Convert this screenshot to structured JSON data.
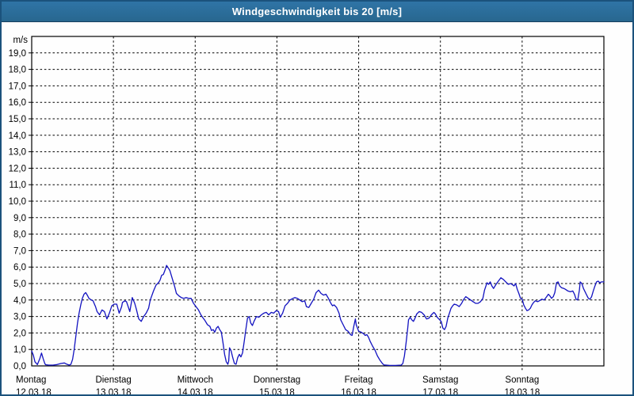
{
  "window": {
    "title": "Windgeschwindigkeit bis 20 [m/s]"
  },
  "colors": {
    "titlebar_bg": "#2a6d9e",
    "window_border": "#1b527c",
    "plot_frame": "#000000",
    "grid": "#000000",
    "line": "#1212c0",
    "background": "#fefefe",
    "title_text": "#ffffff"
  },
  "chart_data": {
    "type": "line",
    "title": "Windgeschwindigkeit bis 20 [m/s]",
    "y_unit": "m/s",
    "ylim": [
      0,
      20
    ],
    "y_tick_step": 1.0,
    "y_tick_labels": [
      "0,0",
      "1,0",
      "2,0",
      "3,0",
      "4,0",
      "5,0",
      "6,0",
      "7,0",
      "8,0",
      "9,0",
      "10,0",
      "11,0",
      "12,0",
      "13,0",
      "14,0",
      "15,0",
      "16,0",
      "17,0",
      "18,0",
      "19,0"
    ],
    "xlim_days": [
      0,
      7
    ],
    "grid": "dashed, horizontal every 1 m/s, vertical at day boundaries",
    "legend": "none",
    "x_days": [
      {
        "weekday": "Montag",
        "date": "12.03.18"
      },
      {
        "weekday": "Dienstag",
        "date": "13.03.18"
      },
      {
        "weekday": "Mittwoch",
        "date": "14.03.18"
      },
      {
        "weekday": "Donnerstag",
        "date": "15.03.18"
      },
      {
        "weekday": "Freitag",
        "date": "16.03.18"
      },
      {
        "weekday": "Samstag",
        "date": "17.03.18"
      },
      {
        "weekday": "Sonntag",
        "date": "18.03.18"
      }
    ],
    "series": [
      {
        "name": "Windgeschwindigkeit",
        "unit": "m/s",
        "points": [
          [
            0.0,
            0.9
          ],
          [
            0.02,
            0.65
          ],
          [
            0.04,
            0.25
          ],
          [
            0.07,
            0.08
          ],
          [
            0.1,
            0.45
          ],
          [
            0.12,
            0.78
          ],
          [
            0.14,
            0.45
          ],
          [
            0.16,
            0.15
          ],
          [
            0.17,
            0.07
          ],
          [
            0.21,
            0.05
          ],
          [
            0.26,
            0.05
          ],
          [
            0.31,
            0.08
          ],
          [
            0.36,
            0.15
          ],
          [
            0.4,
            0.18
          ],
          [
            0.43,
            0.1
          ],
          [
            0.46,
            0.05
          ],
          [
            0.48,
            0.1
          ],
          [
            0.5,
            0.4
          ],
          [
            0.52,
            1.0
          ],
          [
            0.54,
            1.8
          ],
          [
            0.56,
            2.6
          ],
          [
            0.58,
            3.2
          ],
          [
            0.6,
            3.7
          ],
          [
            0.62,
            4.1
          ],
          [
            0.64,
            4.35
          ],
          [
            0.66,
            4.45
          ],
          [
            0.68,
            4.3
          ],
          [
            0.7,
            4.1
          ],
          [
            0.73,
            4.0
          ],
          [
            0.75,
            3.95
          ],
          [
            0.78,
            3.6
          ],
          [
            0.8,
            3.3
          ],
          [
            0.83,
            3.1
          ],
          [
            0.86,
            3.4
          ],
          [
            0.89,
            3.3
          ],
          [
            0.92,
            2.85
          ],
          [
            0.95,
            3.2
          ],
          [
            0.98,
            3.65
          ],
          [
            1.01,
            3.75
          ],
          [
            1.04,
            3.75
          ],
          [
            1.07,
            3.2
          ],
          [
            1.1,
            3.6
          ],
          [
            1.11,
            3.85
          ],
          [
            1.14,
            3.95
          ],
          [
            1.16,
            3.9
          ],
          [
            1.18,
            3.6
          ],
          [
            1.2,
            3.3
          ],
          [
            1.23,
            4.15
          ],
          [
            1.26,
            3.8
          ],
          [
            1.28,
            3.45
          ],
          [
            1.31,
            2.85
          ],
          [
            1.34,
            2.7
          ],
          [
            1.37,
            3.0
          ],
          [
            1.4,
            3.2
          ],
          [
            1.43,
            3.5
          ],
          [
            1.45,
            4.0
          ],
          [
            1.49,
            4.55
          ],
          [
            1.52,
            4.9
          ],
          [
            1.55,
            5.05
          ],
          [
            1.57,
            5.2
          ],
          [
            1.59,
            5.5
          ],
          [
            1.61,
            5.55
          ],
          [
            1.63,
            5.8
          ],
          [
            1.65,
            6.1
          ],
          [
            1.67,
            5.95
          ],
          [
            1.69,
            5.8
          ],
          [
            1.72,
            5.3
          ],
          [
            1.75,
            4.8
          ],
          [
            1.77,
            4.4
          ],
          [
            1.8,
            4.25
          ],
          [
            1.83,
            4.15
          ],
          [
            1.86,
            4.1
          ],
          [
            1.89,
            4.15
          ],
          [
            1.92,
            4.1
          ],
          [
            1.95,
            4.1
          ],
          [
            1.98,
            3.8
          ],
          [
            2.01,
            3.6
          ],
          [
            2.04,
            3.4
          ],
          [
            2.07,
            3.1
          ],
          [
            2.09,
            2.95
          ],
          [
            2.12,
            2.75
          ],
          [
            2.15,
            2.5
          ],
          [
            2.18,
            2.4
          ],
          [
            2.2,
            2.15
          ],
          [
            2.22,
            2.2
          ],
          [
            2.24,
            2.05
          ],
          [
            2.26,
            2.3
          ],
          [
            2.28,
            2.4
          ],
          [
            2.3,
            2.2
          ],
          [
            2.32,
            2.05
          ],
          [
            2.34,
            1.4
          ],
          [
            2.36,
            0.7
          ],
          [
            2.38,
            0.25
          ],
          [
            2.4,
            0.1
          ],
          [
            2.41,
            0.3
          ],
          [
            2.42,
            1.1
          ],
          [
            2.44,
            0.9
          ],
          [
            2.46,
            0.5
          ],
          [
            2.48,
            0.15
          ],
          [
            2.5,
            0.1
          ],
          [
            2.52,
            0.5
          ],
          [
            2.54,
            0.7
          ],
          [
            2.56,
            0.55
          ],
          [
            2.58,
            0.8
          ],
          [
            2.6,
            1.5
          ],
          [
            2.62,
            2.2
          ],
          [
            2.64,
            2.9
          ],
          [
            2.66,
            3.0
          ],
          [
            2.68,
            2.6
          ],
          [
            2.7,
            2.45
          ],
          [
            2.72,
            2.7
          ],
          [
            2.75,
            3.0
          ],
          [
            2.78,
            2.95
          ],
          [
            2.81,
            3.1
          ],
          [
            2.84,
            3.2
          ],
          [
            2.87,
            3.25
          ],
          [
            2.9,
            3.1
          ],
          [
            2.93,
            3.25
          ],
          [
            2.96,
            3.2
          ],
          [
            2.99,
            3.35
          ],
          [
            3.02,
            3.3
          ],
          [
            3.04,
            2.95
          ],
          [
            3.07,
            3.2
          ],
          [
            3.1,
            3.65
          ],
          [
            3.13,
            3.8
          ],
          [
            3.16,
            4.0
          ],
          [
            3.19,
            4.08
          ],
          [
            3.22,
            4.15
          ],
          [
            3.25,
            4.1
          ],
          [
            3.28,
            4.0
          ],
          [
            3.31,
            3.9
          ],
          [
            3.34,
            3.95
          ],
          [
            3.36,
            3.6
          ],
          [
            3.39,
            3.55
          ],
          [
            3.42,
            3.8
          ],
          [
            3.45,
            4.05
          ],
          [
            3.48,
            4.45
          ],
          [
            3.51,
            4.6
          ],
          [
            3.54,
            4.4
          ],
          [
            3.57,
            4.3
          ],
          [
            3.6,
            4.35
          ],
          [
            3.63,
            4.1
          ],
          [
            3.66,
            3.8
          ],
          [
            3.68,
            3.65
          ],
          [
            3.7,
            3.7
          ],
          [
            3.73,
            3.55
          ],
          [
            3.76,
            3.2
          ],
          [
            3.78,
            2.8
          ],
          [
            3.81,
            2.5
          ],
          [
            3.84,
            2.2
          ],
          [
            3.87,
            2.1
          ],
          [
            3.9,
            1.9
          ],
          [
            3.92,
            1.85
          ],
          [
            3.94,
            2.4
          ],
          [
            3.96,
            2.85
          ],
          [
            3.97,
            2.5
          ],
          [
            4.0,
            2.1
          ],
          [
            4.03,
            2.05
          ],
          [
            4.06,
            1.95
          ],
          [
            4.08,
            1.85
          ],
          [
            4.1,
            1.9
          ],
          [
            4.12,
            1.75
          ],
          [
            4.14,
            1.5
          ],
          [
            4.17,
            1.2
          ],
          [
            4.2,
            0.95
          ],
          [
            4.23,
            0.6
          ],
          [
            4.26,
            0.35
          ],
          [
            4.29,
            0.15
          ],
          [
            4.31,
            0.06
          ],
          [
            4.38,
            0.03
          ],
          [
            4.45,
            0.03
          ],
          [
            4.52,
            0.05
          ],
          [
            4.54,
            0.15
          ],
          [
            4.56,
            0.6
          ],
          [
            4.58,
            1.4
          ],
          [
            4.6,
            2.3
          ],
          [
            4.61,
            2.8
          ],
          [
            4.63,
            2.95
          ],
          [
            4.65,
            2.8
          ],
          [
            4.67,
            2.7
          ],
          [
            4.69,
            2.9
          ],
          [
            4.71,
            3.15
          ],
          [
            4.74,
            3.3
          ],
          [
            4.77,
            3.25
          ],
          [
            4.8,
            3.1
          ],
          [
            4.83,
            2.85
          ],
          [
            4.86,
            2.9
          ],
          [
            4.89,
            3.1
          ],
          [
            4.92,
            3.25
          ],
          [
            4.94,
            3.15
          ],
          [
            4.96,
            2.95
          ],
          [
            4.98,
            2.85
          ],
          [
            5.01,
            2.7
          ],
          [
            5.03,
            2.3
          ],
          [
            5.05,
            2.2
          ],
          [
            5.07,
            2.4
          ],
          [
            5.09,
            2.9
          ],
          [
            5.11,
            3.2
          ],
          [
            5.13,
            3.5
          ],
          [
            5.15,
            3.65
          ],
          [
            5.17,
            3.75
          ],
          [
            5.2,
            3.7
          ],
          [
            5.23,
            3.6
          ],
          [
            5.26,
            3.8
          ],
          [
            5.28,
            4.0
          ],
          [
            5.31,
            4.2
          ],
          [
            5.34,
            4.1
          ],
          [
            5.37,
            4.0
          ],
          [
            5.4,
            3.9
          ],
          [
            5.43,
            3.8
          ],
          [
            5.46,
            3.8
          ],
          [
            5.49,
            3.9
          ],
          [
            5.52,
            4.1
          ],
          [
            5.54,
            4.6
          ],
          [
            5.56,
            4.9
          ],
          [
            5.57,
            5.05
          ],
          [
            5.59,
            4.95
          ],
          [
            5.61,
            5.1
          ],
          [
            5.63,
            4.85
          ],
          [
            5.65,
            4.7
          ],
          [
            5.68,
            4.95
          ],
          [
            5.71,
            5.15
          ],
          [
            5.74,
            5.35
          ],
          [
            5.77,
            5.25
          ],
          [
            5.8,
            5.1
          ],
          [
            5.83,
            4.95
          ],
          [
            5.86,
            5.0
          ],
          [
            5.89,
            4.9
          ],
          [
            5.9,
            4.85
          ],
          [
            5.92,
            5.0
          ],
          [
            5.94,
            4.65
          ],
          [
            5.96,
            4.4
          ],
          [
            5.98,
            4.1
          ],
          [
            6.0,
            4.05
          ],
          [
            6.02,
            3.7
          ],
          [
            6.04,
            3.5
          ],
          [
            6.06,
            3.35
          ],
          [
            6.08,
            3.4
          ],
          [
            6.1,
            3.5
          ],
          [
            6.12,
            3.7
          ],
          [
            6.14,
            3.85
          ],
          [
            6.16,
            3.95
          ],
          [
            6.19,
            3.9
          ],
          [
            6.21,
            3.95
          ],
          [
            6.24,
            4.05
          ],
          [
            6.27,
            4.0
          ],
          [
            6.3,
            4.2
          ],
          [
            6.32,
            4.35
          ],
          [
            6.34,
            4.25
          ],
          [
            6.36,
            4.1
          ],
          [
            6.38,
            4.2
          ],
          [
            6.4,
            4.45
          ],
          [
            6.42,
            5.05
          ],
          [
            6.44,
            5.1
          ],
          [
            6.46,
            4.85
          ],
          [
            6.48,
            4.75
          ],
          [
            6.51,
            4.7
          ],
          [
            6.53,
            4.65
          ],
          [
            6.56,
            4.55
          ],
          [
            6.59,
            4.5
          ],
          [
            6.62,
            4.55
          ],
          [
            6.64,
            4.35
          ],
          [
            6.66,
            4.05
          ],
          [
            6.68,
            4.0
          ],
          [
            6.7,
            4.6
          ],
          [
            6.71,
            5.1
          ],
          [
            6.73,
            5.0
          ],
          [
            6.75,
            4.7
          ],
          [
            6.77,
            4.5
          ],
          [
            6.79,
            4.3
          ],
          [
            6.81,
            4.1
          ],
          [
            6.83,
            4.05
          ],
          [
            6.85,
            4.2
          ],
          [
            6.87,
            4.55
          ],
          [
            6.89,
            4.85
          ],
          [
            6.91,
            5.1
          ],
          [
            6.93,
            5.15
          ],
          [
            6.95,
            5.05
          ],
          [
            6.97,
            5.1
          ],
          [
            7.0,
            5.1
          ]
        ]
      }
    ]
  }
}
